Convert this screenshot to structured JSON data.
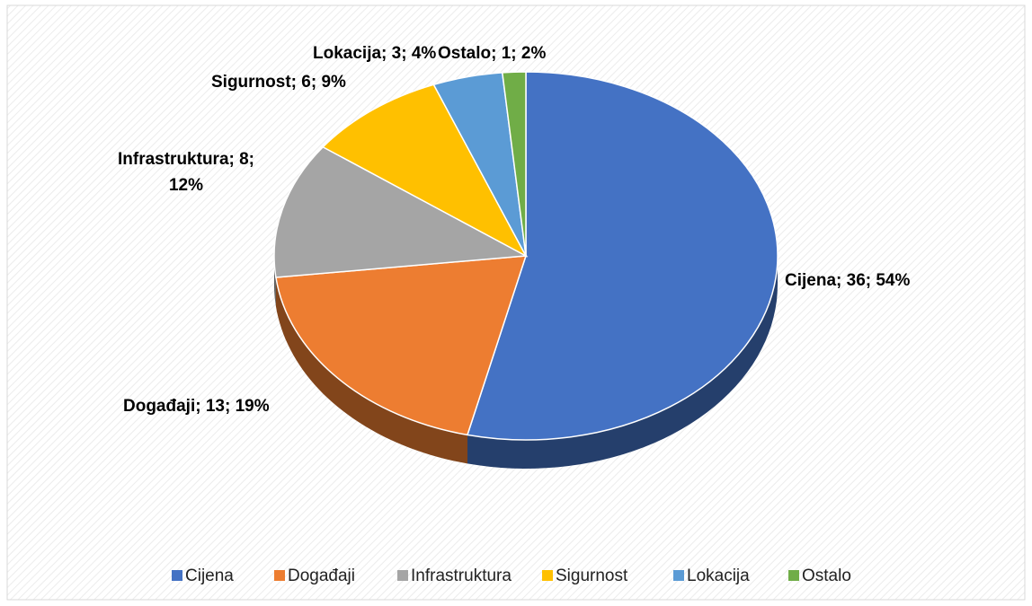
{
  "chart_data": {
    "type": "pie",
    "categories": [
      "Cijena",
      "Događaji",
      "Infrastruktura",
      "Sigurnost",
      "Lokacija",
      "Ostalo"
    ],
    "values": [
      36,
      13,
      8,
      6,
      3,
      1
    ],
    "value_labels": [
      "Cijena; 36; 54%",
      "Događaji; 13; 19%",
      "Infrastruktura; 8; 12%",
      "Sigurnost; 6; 9%",
      "Lokacija; 3; 4%",
      "Ostalo; 1; 2%"
    ],
    "colors": [
      "#4472c4",
      "#ed7d31",
      "#a5a5a5",
      "#ffc000",
      "#5b9bd5",
      "#70ad47"
    ],
    "legend": "bottom"
  }
}
